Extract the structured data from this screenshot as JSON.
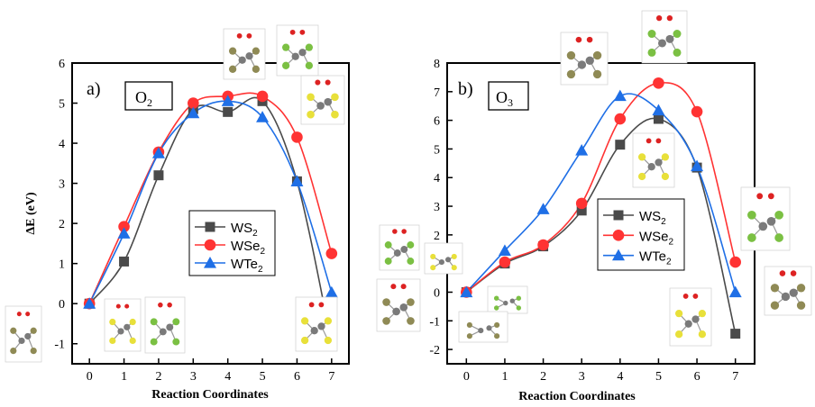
{
  "colors": {
    "WS2": "#4a4a4a",
    "WSe2": "#ff3333",
    "WTe2": "#1f6fe6",
    "atom_gray": "#7a7a7a",
    "atom_olive": "#8f8a55",
    "atom_green": "#7bc043",
    "atom_yellow": "#e8e03a",
    "atom_oxygen": "#dd2222"
  },
  "chart_data": [
    {
      "type": "line",
      "panel_label": "a)",
      "species": "O",
      "species_sub": "2",
      "xlabel": "Reaction Coordinates",
      "ylabel": "ΔE (eV)",
      "xlim": [
        -0.5,
        7.5
      ],
      "ylim": [
        -1.5,
        6
      ],
      "xticks": [
        "0",
        "1",
        "2",
        "3",
        "4",
        "5",
        "6",
        "7"
      ],
      "yticks": [
        "-1",
        "0",
        "1",
        "2",
        "3",
        "4",
        "5",
        "6"
      ],
      "legend_position": "center-right",
      "x": [
        0,
        1,
        2,
        3,
        4,
        5,
        6,
        7
      ],
      "series": [
        {
          "key": "WS2",
          "name": "WS",
          "sub": "2",
          "marker": "square",
          "values": [
            0,
            1.05,
            3.2,
            4.85,
            4.78,
            5.05,
            3.05,
            -0.98
          ]
        },
        {
          "key": "WSe2",
          "name": "WSe",
          "sub": "2",
          "marker": "circle",
          "values": [
            0,
            1.92,
            3.78,
            5.0,
            5.17,
            5.17,
            4.15,
            1.25
          ]
        },
        {
          "key": "WTe2",
          "name": "WTe",
          "sub": "2",
          "marker": "triangle",
          "values": [
            0,
            1.75,
            3.75,
            4.75,
            5.05,
            4.65,
            3.05,
            0.28
          ]
        }
      ]
    },
    {
      "type": "line",
      "panel_label": "b)",
      "species": "O",
      "species_sub": "3",
      "xlabel": "Reaction Coordinates",
      "ylabel": "",
      "xlim": [
        -0.5,
        7.5
      ],
      "ylim": [
        -2.5,
        8
      ],
      "xticks": [
        "0",
        "1",
        "2",
        "3",
        "4",
        "5",
        "6",
        "7"
      ],
      "yticks": [
        "-2",
        "-1",
        "0",
        "1",
        "2",
        "3",
        "4",
        "5",
        "6",
        "7",
        "8"
      ],
      "legend_position": "center-right",
      "x": [
        0,
        1,
        2,
        3,
        4,
        5,
        6,
        7
      ],
      "series": [
        {
          "key": "WS2",
          "name": "WS",
          "sub": "2",
          "marker": "square",
          "values": [
            0,
            1.0,
            1.6,
            2.85,
            5.15,
            6.05,
            4.35,
            -1.45
          ]
        },
        {
          "key": "WSe2",
          "name": "WSe",
          "sub": "2",
          "marker": "circle",
          "values": [
            0,
            1.05,
            1.65,
            3.1,
            6.05,
            7.3,
            6.3,
            1.05
          ]
        },
        {
          "key": "WTe2",
          "name": "WTe",
          "sub": "2",
          "marker": "triangle",
          "values": [
            0,
            1.45,
            2.9,
            4.95,
            6.85,
            6.35,
            4.4,
            0
          ]
        }
      ]
    }
  ],
  "structure_insets": [
    {
      "name": "inset-a-0",
      "scheme": "olive",
      "o2": true
    },
    {
      "name": "inset-a-1",
      "scheme": "yellow",
      "o2": true
    },
    {
      "name": "inset-a-2",
      "scheme": "green",
      "o2": true
    },
    {
      "name": "inset-a-top-ws2",
      "scheme": "olive",
      "o2": true
    },
    {
      "name": "inset-a-top-wse2",
      "scheme": "green",
      "o2": true
    },
    {
      "name": "inset-a-wte2",
      "scheme": "yellow",
      "o2": true
    },
    {
      "name": "inset-a-6",
      "scheme": "yellow",
      "o2": true
    },
    {
      "name": "inset-a-right-top",
      "scheme": "green",
      "o2": true
    },
    {
      "name": "inset-a-right-bottom",
      "scheme": "olive",
      "o2": true
    },
    {
      "name": "inset-b-left-1",
      "scheme": "yellow",
      "o2": false
    },
    {
      "name": "inset-b-left-2",
      "scheme": "green",
      "o2": false
    },
    {
      "name": "inset-b-left-3",
      "scheme": "olive",
      "o2": false
    },
    {
      "name": "inset-b-top-1",
      "scheme": "olive",
      "o2": true
    },
    {
      "name": "inset-b-top-2",
      "scheme": "green",
      "o2": true
    },
    {
      "name": "inset-b-mid",
      "scheme": "yellow",
      "o2": true
    },
    {
      "name": "inset-b-6",
      "scheme": "yellow",
      "o2": true
    },
    {
      "name": "inset-b-right-top",
      "scheme": "green",
      "o2": true
    },
    {
      "name": "inset-b-right-bottom",
      "scheme": "olive",
      "o2": true
    }
  ]
}
